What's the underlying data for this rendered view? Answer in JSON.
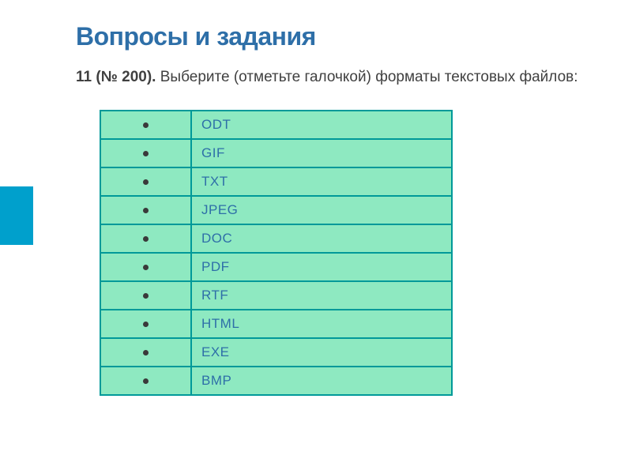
{
  "title": "Вопросы и задания",
  "question": {
    "number": "11 (№ 200).",
    "text": " Выберите (отметьте галочкой) форматы текстовых файлов:"
  },
  "table": {
    "border_color": "#009999",
    "cell_bg": "#8ee9c1",
    "bullet_color": "#3a3a3a",
    "label_color": "#2e6fa8",
    "rows": [
      {
        "label": "ODT"
      },
      {
        "label": "GIF"
      },
      {
        "label": "TXT"
      },
      {
        "label": "JPEG"
      },
      {
        "label": "DOC"
      },
      {
        "label": "PDF"
      },
      {
        "label": "RTF"
      },
      {
        "label": "HTML"
      },
      {
        "label": "EXE"
      },
      {
        "label": "BMP"
      }
    ]
  },
  "accent": {
    "color": "#00a0cc"
  }
}
